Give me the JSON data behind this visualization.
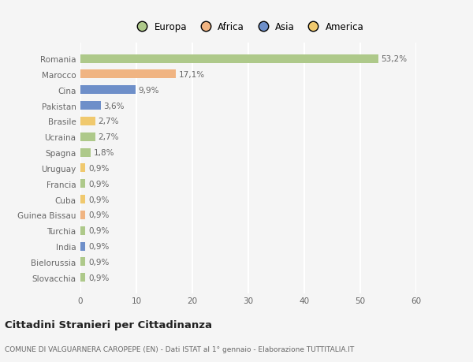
{
  "categories": [
    "Romania",
    "Marocco",
    "Cina",
    "Pakistan",
    "Brasile",
    "Ucraina",
    "Spagna",
    "Uruguay",
    "Francia",
    "Cuba",
    "Guinea Bissau",
    "Turchia",
    "India",
    "Bielorussia",
    "Slovacchia"
  ],
  "values": [
    53.2,
    17.1,
    9.9,
    3.6,
    2.7,
    2.7,
    1.8,
    0.9,
    0.9,
    0.9,
    0.9,
    0.9,
    0.9,
    0.9,
    0.9
  ],
  "labels": [
    "53,2%",
    "17,1%",
    "9,9%",
    "3,6%",
    "2,7%",
    "2,7%",
    "1,8%",
    "0,9%",
    "0,9%",
    "0,9%",
    "0,9%",
    "0,9%",
    "0,9%",
    "0,9%",
    "0,9%"
  ],
  "colors": [
    "#aec98a",
    "#f0b482",
    "#6e8fc9",
    "#6e8fc9",
    "#f0c96e",
    "#aec98a",
    "#aec98a",
    "#f0c96e",
    "#aec98a",
    "#f0c96e",
    "#f0b482",
    "#aec98a",
    "#6e8fc9",
    "#aec98a",
    "#aec98a"
  ],
  "legend_labels": [
    "Europa",
    "Africa",
    "Asia",
    "America"
  ],
  "legend_colors": [
    "#aec98a",
    "#f0b482",
    "#6e8fc9",
    "#f0c96e"
  ],
  "xlim": [
    0,
    60
  ],
  "xticks": [
    0,
    10,
    20,
    30,
    40,
    50,
    60
  ],
  "title": "Cittadini Stranieri per Cittadinanza",
  "subtitle": "COMUNE DI VALGUARNERA CAROPEPE (EN) - Dati ISTAT al 1° gennaio - Elaborazione TUTTITALIA.IT",
  "bg_color": "#f5f5f5",
  "grid_color": "#ffffff",
  "bar_height": 0.55,
  "label_fontsize": 7.5,
  "tick_fontsize": 7.5,
  "legend_fontsize": 8.5
}
